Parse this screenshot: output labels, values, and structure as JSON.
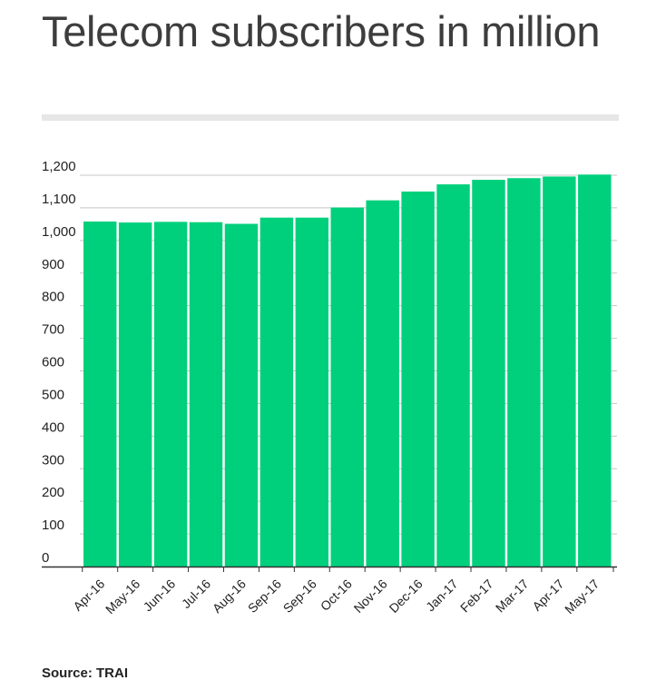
{
  "title": "Telecom subscribers in million",
  "source": "Source: TRAI",
  "colors": {
    "bar": "#00d07c",
    "grid": "#c8c8c8",
    "axis": "#333333",
    "text": "#222222",
    "title": "#3d3d3d",
    "rule": "#e6e6e6"
  },
  "chart_data": {
    "type": "bar",
    "title": "Telecom subscribers in million",
    "xlabel": "",
    "ylabel": "",
    "categories": [
      "Apr-16",
      "May-16",
      "Jun-16",
      "Jul-16",
      "Aug-16",
      "Sep-16",
      "Sep-16",
      "Oct-16",
      "Nov-16",
      "Dec-16",
      "Jan-17",
      "Feb-17",
      "Mar-17",
      "Apr-17",
      "May-17"
    ],
    "values": [
      1058,
      1055,
      1057,
      1056,
      1051,
      1070,
      1070,
      1101,
      1123,
      1150,
      1172,
      1186,
      1191,
      1196,
      1202
    ],
    "ylim": [
      0,
      1200
    ],
    "yticks": [
      0,
      100,
      200,
      300,
      400,
      500,
      600,
      700,
      800,
      900,
      1000,
      1100,
      1200
    ],
    "ytick_labels": [
      "0",
      "100",
      "200",
      "300",
      "400",
      "500",
      "600",
      "700",
      "800",
      "900",
      "1,000",
      "1,100",
      "1,200"
    ],
    "grid": true,
    "legend": "none"
  }
}
